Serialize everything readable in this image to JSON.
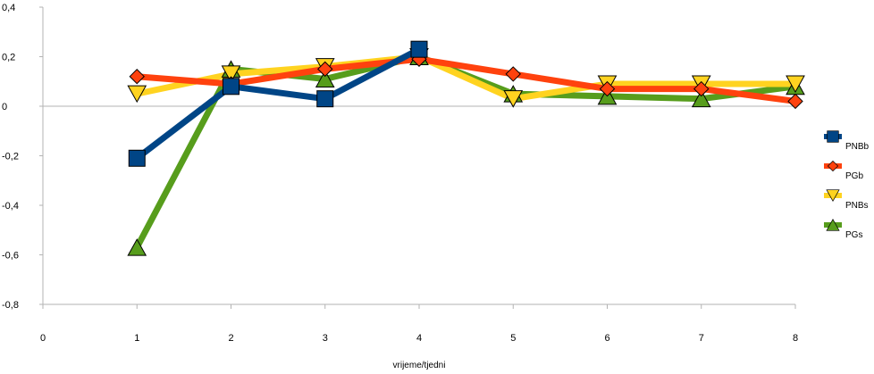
{
  "chart_data": {
    "type": "line",
    "title": "",
    "xlabel": "vrijeme/tjedni",
    "ylabel": "",
    "xlim": [
      0,
      8
    ],
    "ylim": [
      -0.8,
      0.4
    ],
    "x_ticks": [
      "0",
      "1",
      "2",
      "3",
      "4",
      "5",
      "6",
      "7",
      "8"
    ],
    "y_ticks": [
      {
        "value": 0.4,
        "label": "0,4"
      },
      {
        "value": 0.2,
        "label": "0,2"
      },
      {
        "value": 0,
        "label": "0"
      },
      {
        "value": -0.2,
        "label": "-0,2"
      },
      {
        "value": -0.4,
        "label": "-0,4"
      },
      {
        "value": -0.6,
        "label": "-0,6"
      },
      {
        "value": -0.8,
        "label": "-0,8"
      }
    ],
    "grid": false,
    "legend_position": "right",
    "x": [
      1,
      2,
      3,
      4,
      5,
      6,
      7,
      8
    ],
    "series": [
      {
        "name": "PNBb",
        "color": "#004586",
        "marker": "square",
        "values": [
          -0.21,
          0.08,
          0.03,
          0.23,
          null,
          null,
          null,
          null
        ]
      },
      {
        "name": "PGb",
        "color": "#ff420e",
        "marker": "diamond",
        "values": [
          0.12,
          0.09,
          0.15,
          0.19,
          0.13,
          0.07,
          0.07,
          0.02
        ]
      },
      {
        "name": "PNBs",
        "color": "#ffd320",
        "marker": "triangle-down",
        "values": [
          0.05,
          0.13,
          0.16,
          0.2,
          0.03,
          0.09,
          0.09,
          0.09
        ]
      },
      {
        "name": "PGs",
        "color": "#579d1c",
        "marker": "triangle-up",
        "values": [
          -0.57,
          0.15,
          0.11,
          0.2,
          0.05,
          0.04,
          0.03,
          0.08
        ]
      }
    ]
  }
}
